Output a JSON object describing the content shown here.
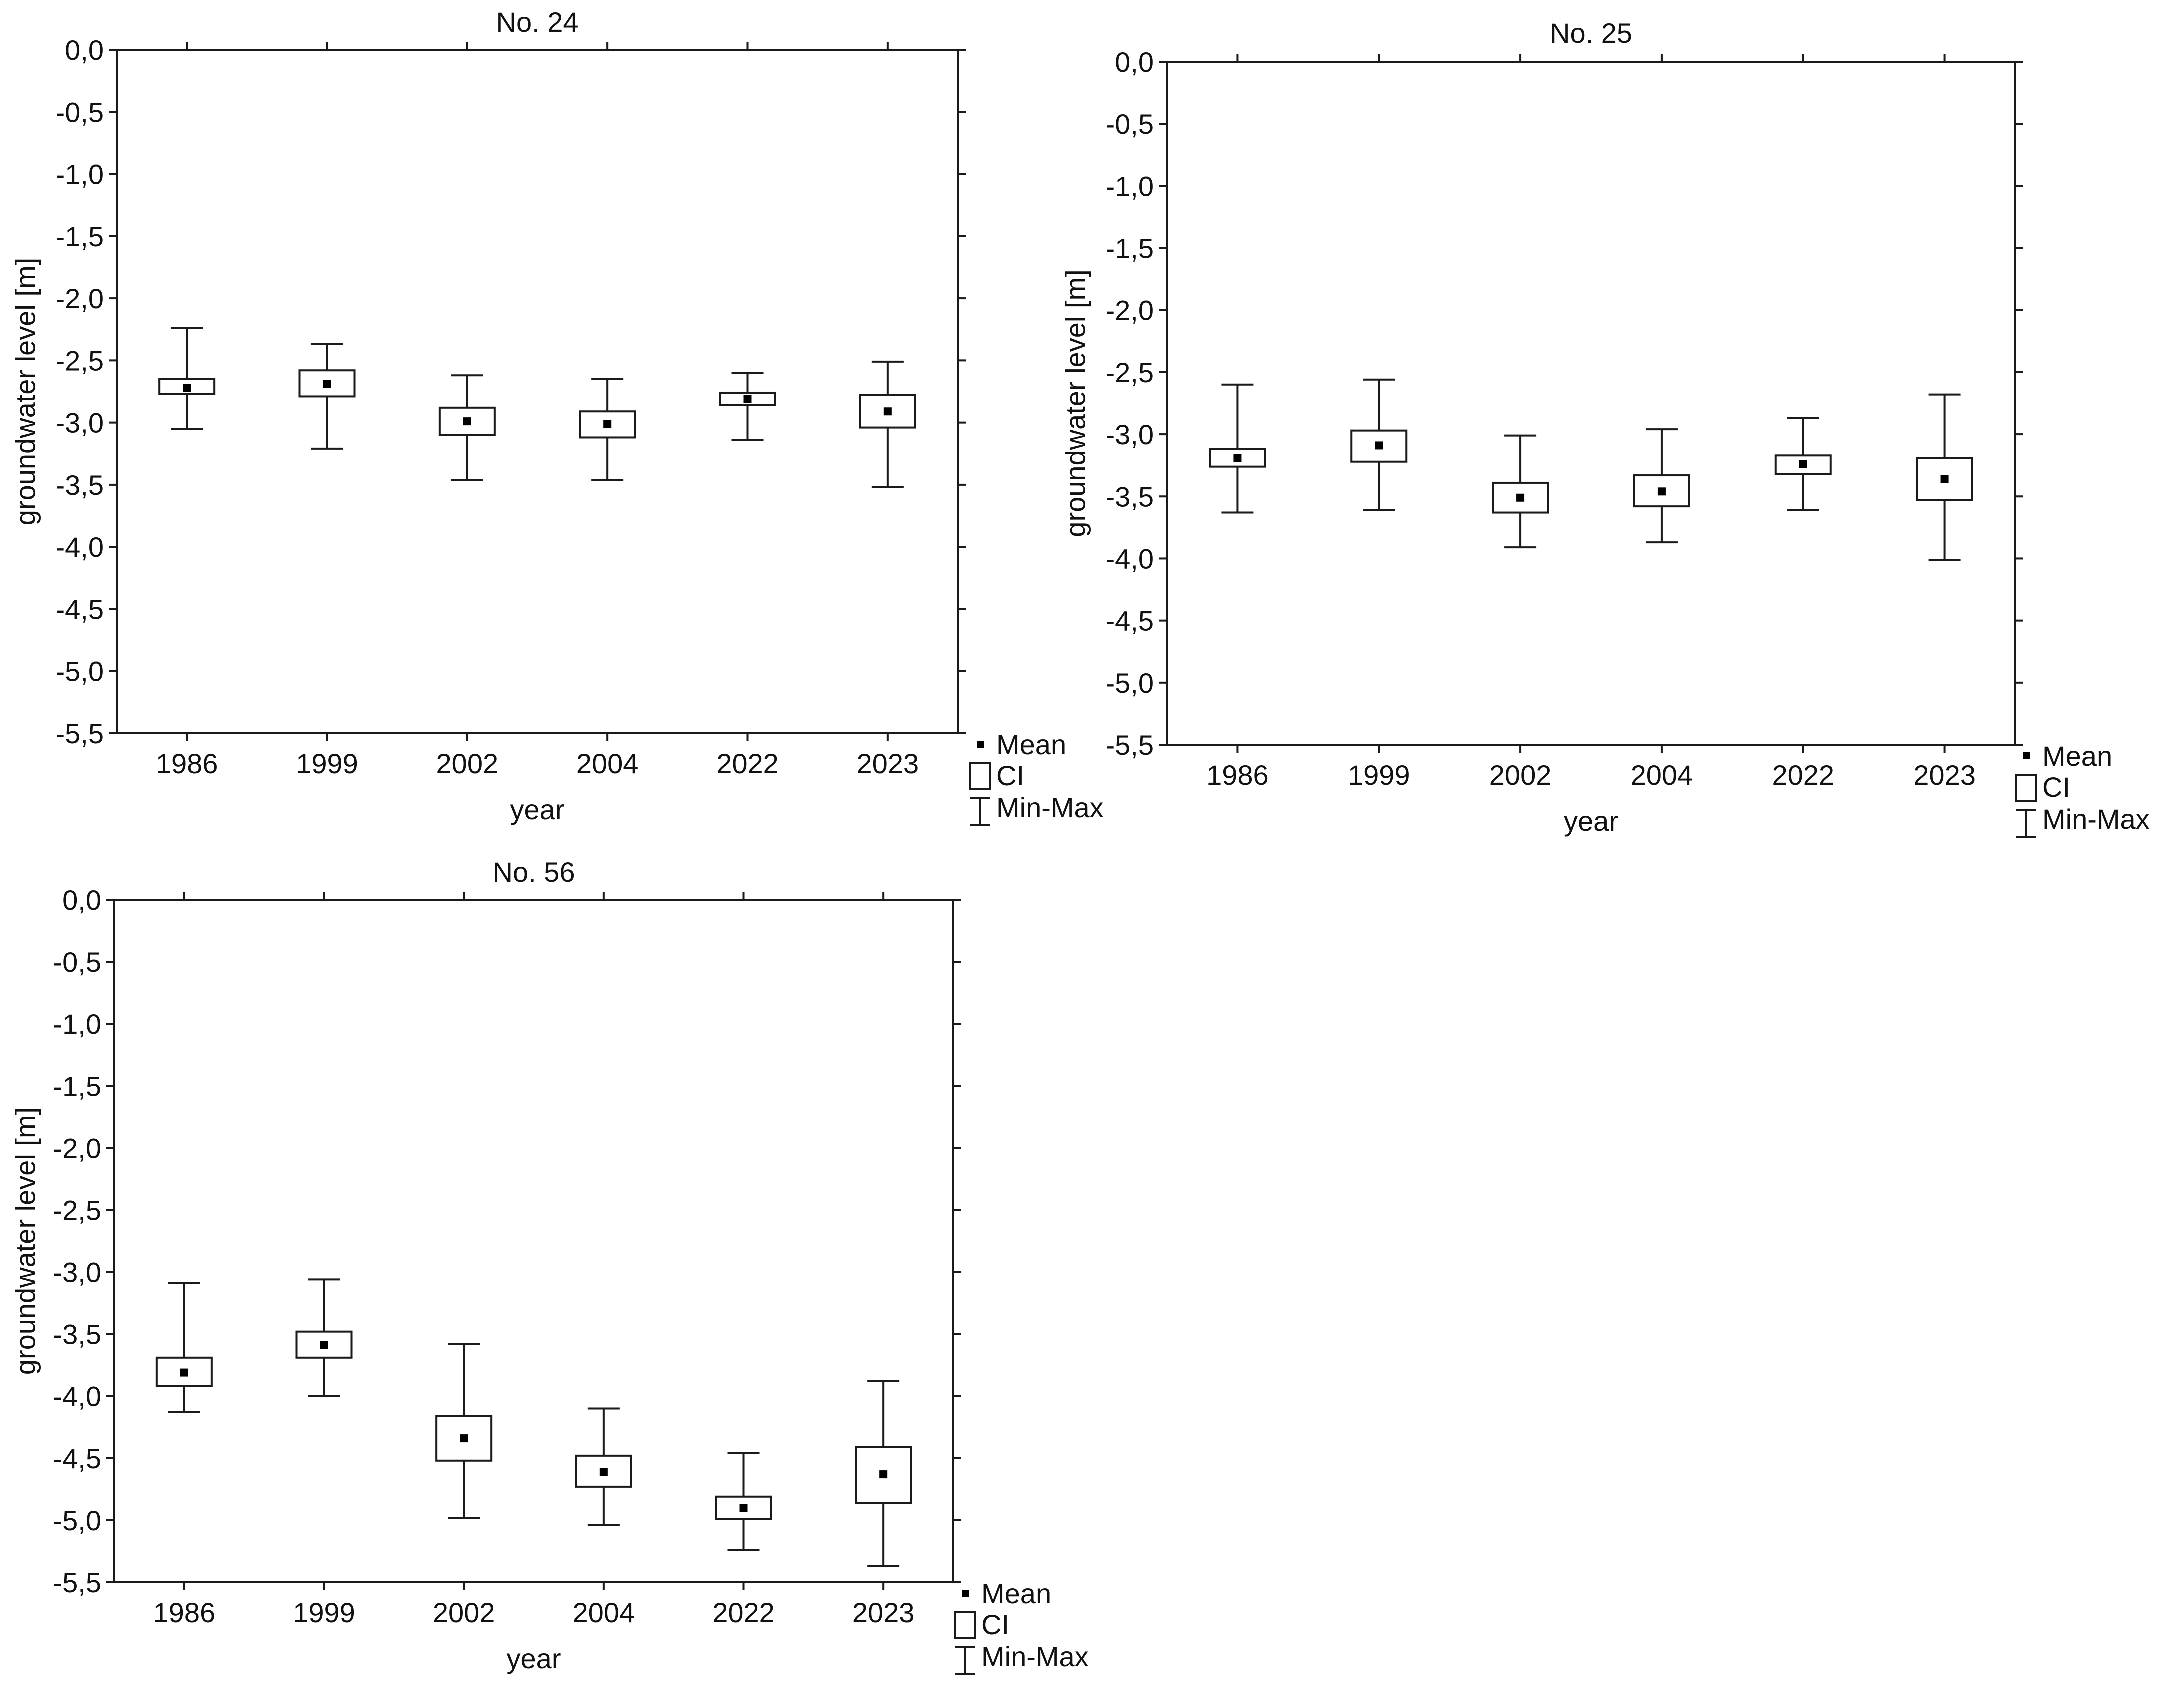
{
  "legend": {
    "mean": "Mean",
    "ci": "CI",
    "minmax": "Min-Max"
  },
  "chart_data": [
    {
      "type": "box",
      "title": "No. 24",
      "xlabel": "year",
      "ylabel": "groundwater level [m]",
      "ylim": [
        -5.5,
        0
      ],
      "yticks": [
        "0,0",
        "-0,5",
        "-1,0",
        "-1,5",
        "-2,0",
        "-2,5",
        "-3,0",
        "-3,5",
        "-4,0",
        "-4,5",
        "-5,0",
        "-5,5"
      ],
      "categories": [
        "1986",
        "1999",
        "2002",
        "2004",
        "2022",
        "2023"
      ],
      "series": [
        {
          "mean": -2.72,
          "ci_low": -2.77,
          "ci_high": -2.65,
          "min": -3.05,
          "max": -2.24
        },
        {
          "mean": -2.69,
          "ci_low": -2.79,
          "ci_high": -2.58,
          "min": -3.21,
          "max": -2.37
        },
        {
          "mean": -2.99,
          "ci_low": -3.1,
          "ci_high": -2.88,
          "min": -3.46,
          "max": -2.62
        },
        {
          "mean": -3.01,
          "ci_low": -3.12,
          "ci_high": -2.91,
          "min": -3.46,
          "max": -2.65
        },
        {
          "mean": -2.81,
          "ci_low": -2.86,
          "ci_high": -2.76,
          "min": -3.14,
          "max": -2.6
        },
        {
          "mean": -2.91,
          "ci_low": -3.04,
          "ci_high": -2.78,
          "min": -3.52,
          "max": -2.51
        }
      ]
    },
    {
      "type": "box",
      "title": "No. 25",
      "xlabel": "year",
      "ylabel": "groundwater level [m]",
      "ylim": [
        -5.5,
        0
      ],
      "yticks": [
        "0,0",
        "-0,5",
        "-1,0",
        "-1,5",
        "-2,0",
        "-2,5",
        "-3,0",
        "-3,5",
        "-4,0",
        "-4,5",
        "-5,0",
        "-5,5"
      ],
      "categories": [
        "1986",
        "1999",
        "2002",
        "2004",
        "2022",
        "2023"
      ],
      "series": [
        {
          "mean": -3.19,
          "ci_low": -3.26,
          "ci_high": -3.12,
          "min": -3.63,
          "max": -2.6
        },
        {
          "mean": -3.09,
          "ci_low": -3.22,
          "ci_high": -2.97,
          "min": -3.61,
          "max": -2.56
        },
        {
          "mean": -3.51,
          "ci_low": -3.63,
          "ci_high": -3.39,
          "min": -3.91,
          "max": -3.01
        },
        {
          "mean": -3.46,
          "ci_low": -3.58,
          "ci_high": -3.33,
          "min": -3.87,
          "max": -2.96
        },
        {
          "mean": -3.24,
          "ci_low": -3.32,
          "ci_high": -3.17,
          "min": -3.61,
          "max": -2.87
        },
        {
          "mean": -3.36,
          "ci_low": -3.53,
          "ci_high": -3.19,
          "min": -4.01,
          "max": -2.68
        }
      ]
    },
    {
      "type": "box",
      "title": "No. 56",
      "xlabel": "year",
      "ylabel": "groundwater level [m]",
      "ylim": [
        -5.5,
        0
      ],
      "yticks": [
        "0,0",
        "-0,5",
        "-1,0",
        "-1,5",
        "-2,0",
        "-2,5",
        "-3,0",
        "-3,5",
        "-4,0",
        "-4,5",
        "-5,0",
        "-5,5"
      ],
      "categories": [
        "1986",
        "1999",
        "2002",
        "2004",
        "2022",
        "2023"
      ],
      "series": [
        {
          "mean": -3.81,
          "ci_low": -3.92,
          "ci_high": -3.69,
          "min": -4.13,
          "max": -3.09
        },
        {
          "mean": -3.59,
          "ci_low": -3.69,
          "ci_high": -3.48,
          "min": -4.0,
          "max": -3.06
        },
        {
          "mean": -4.34,
          "ci_low": -4.52,
          "ci_high": -4.16,
          "min": -4.98,
          "max": -3.58
        },
        {
          "mean": -4.61,
          "ci_low": -4.73,
          "ci_high": -4.48,
          "min": -5.04,
          "max": -4.1
        },
        {
          "mean": -4.9,
          "ci_low": -4.99,
          "ci_high": -4.81,
          "min": -5.24,
          "max": -4.46
        },
        {
          "mean": -4.63,
          "ci_low": -4.86,
          "ci_high": -4.41,
          "min": -5.37,
          "max": -3.88
        }
      ]
    }
  ]
}
